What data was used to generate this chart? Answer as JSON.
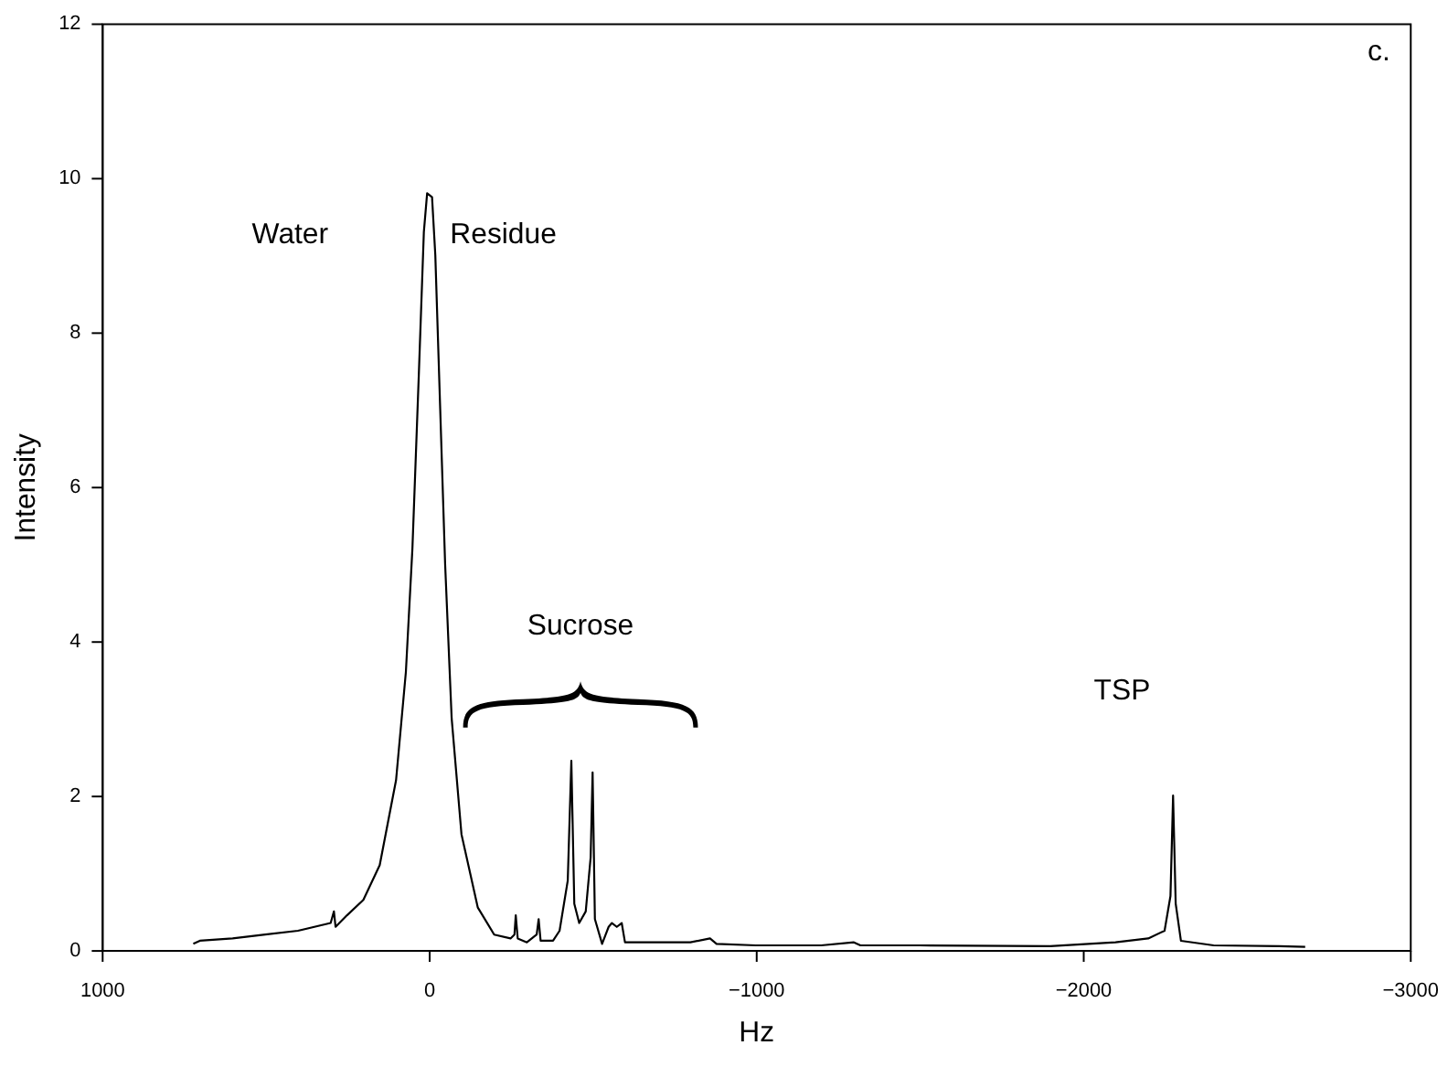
{
  "chart_data": {
    "type": "line",
    "xlabel": "Hz",
    "ylabel": "Intensity",
    "xlim": [
      1000,
      -3000
    ],
    "xticks": [
      1000,
      0,
      -1000,
      -2000,
      -3000
    ],
    "ylim": [
      0,
      12
    ],
    "yticks": [
      0,
      2,
      4,
      6,
      8,
      10,
      12
    ],
    "grid": false,
    "x": [
      720,
      700,
      600,
      500,
      400,
      300,
      290,
      285,
      250,
      200,
      150,
      100,
      70,
      50,
      30,
      15,
      5,
      -10,
      -20,
      -35,
      -50,
      -70,
      -100,
      -150,
      -200,
      -250,
      -262,
      -266,
      -272,
      -300,
      -330,
      -336,
      -342,
      -380,
      -400,
      -425,
      -436,
      -445,
      -460,
      -480,
      -495,
      -501,
      -508,
      -530,
      -550,
      -560,
      -575,
      -590,
      -600,
      -700,
      -800,
      -860,
      -880,
      -1000,
      -1200,
      -1300,
      -1320,
      -1500,
      -1900,
      -2100,
      -2200,
      -2250,
      -2268,
      -2276,
      -2284,
      -2300,
      -2400,
      -2600,
      -2680
    ],
    "series": [
      {
        "color": "#000000",
        "values": [
          0.08,
          0.12,
          0.15,
          0.2,
          0.25,
          0.35,
          0.5,
          0.3,
          0.45,
          0.65,
          1.1,
          2.2,
          3.6,
          5.2,
          7.5,
          9.3,
          9.8,
          9.75,
          9.0,
          7.0,
          5.0,
          3.0,
          1.5,
          0.55,
          0.2,
          0.15,
          0.2,
          0.45,
          0.15,
          0.1,
          0.2,
          0.4,
          0.12,
          0.12,
          0.25,
          0.9,
          2.45,
          0.6,
          0.35,
          0.5,
          1.2,
          2.3,
          0.4,
          0.08,
          0.3,
          0.35,
          0.3,
          0.35,
          0.1,
          0.1,
          0.1,
          0.15,
          0.08,
          0.06,
          0.06,
          0.1,
          0.06,
          0.06,
          0.05,
          0.1,
          0.15,
          0.25,
          0.7,
          2.0,
          0.6,
          0.12,
          0.06,
          0.05,
          0.04
        ]
      }
    ],
    "annotations": [
      "Water",
      "Residue",
      "Sucrose",
      "TSP",
      "c."
    ]
  }
}
